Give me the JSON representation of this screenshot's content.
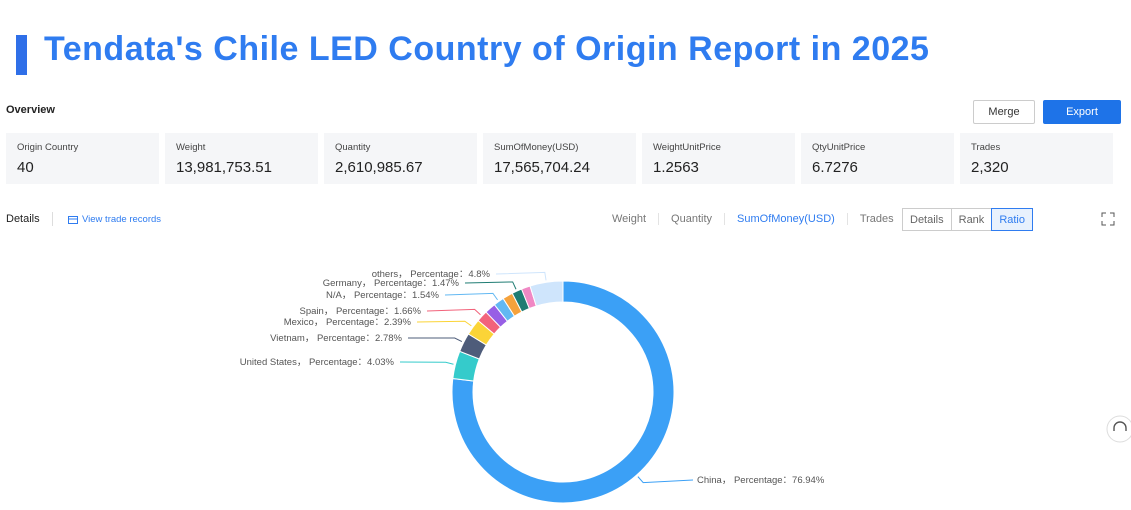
{
  "header": {
    "title": "Tendata's Chile LED Country of Origin Report in 2025"
  },
  "overview": {
    "title": "Overview",
    "buttons": [
      "Merge",
      "Export"
    ]
  },
  "stats": [
    {
      "label": "Origin Country",
      "value": "40"
    },
    {
      "label": "Weight",
      "value": "13,981,753.51"
    },
    {
      "label": "Quantity",
      "value": "2,610,985.67"
    },
    {
      "label": "SumOfMoney(USD)",
      "value": "17,565,704.24"
    },
    {
      "label": "WeightUnitPrice",
      "value": "1.2563"
    },
    {
      "label": "QtyUnitPrice",
      "value": "6.7276"
    },
    {
      "label": "Trades",
      "value": "2,320"
    }
  ],
  "details": {
    "title": "Details",
    "link": "View trade records",
    "tabs": [
      "Weight",
      "Quantity",
      "SumOfMoney(USD)",
      "Trades"
    ],
    "active_tab": 2,
    "views": [
      "Details",
      "Rank",
      "Ratio"
    ],
    "active_view": 2
  },
  "chart_data": {
    "type": "donut",
    "categories": [
      "China",
      "United States",
      "Vietnam",
      "Mexico",
      "Spain",
      null,
      "N/A",
      null,
      "Germany",
      null,
      "others"
    ],
    "values": [
      76.94,
      4.03,
      2.78,
      2.39,
      1.66,
      1.6,
      1.54,
      1.5,
      1.47,
      1.29,
      4.8
    ],
    "value_labels": [
      "Percentage：76.94%",
      "Percentage：4.03%",
      "Percentage：2.78%",
      "Percentage：2.39%",
      "Percentage：1.66%",
      null,
      "Percentage：1.54%",
      null,
      "Percentage：1.47%",
      null,
      "Percentage：4.8%"
    ],
    "label_separator": "， ",
    "colors": [
      "#3ba0f6",
      "#35cbcb",
      "#4e5c7a",
      "#fbd437",
      "#f2637b",
      "#975fe5",
      "#62b8f2",
      "#f5a23c",
      "#1f7c73",
      "#f088c4",
      "#cfe5fc"
    ]
  }
}
